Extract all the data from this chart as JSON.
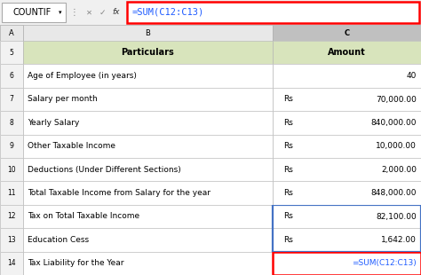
{
  "formula_bar_text": "=SUM(C12:C13)",
  "name_box": "COUNTIF",
  "rows": [
    {
      "row": "5",
      "particulars": "Particulars",
      "rs": "",
      "amount": "Amount",
      "header": true
    },
    {
      "row": "6",
      "particulars": "Age of Employee (in years)",
      "rs": "",
      "amount": "40",
      "header": false
    },
    {
      "row": "7",
      "particulars": "Salary per month",
      "rs": "Rs",
      "amount": "70,000.00",
      "header": false
    },
    {
      "row": "8",
      "particulars": "Yearly Salary",
      "rs": "Rs",
      "amount": "840,000.00",
      "header": false
    },
    {
      "row": "9",
      "particulars": "Other Taxable Income",
      "rs": "Rs",
      "amount": "10,000.00",
      "header": false
    },
    {
      "row": "10",
      "particulars": "Deductions (Under Different Sections)",
      "rs": "Rs",
      "amount": "2,000.00",
      "header": false
    },
    {
      "row": "11",
      "particulars": "Total Taxable Income from Salary for the year",
      "rs": "Rs",
      "amount": "848,000.00",
      "header": false
    },
    {
      "row": "12",
      "particulars": "Tax on Total Taxable Income",
      "rs": "Rs",
      "amount": "82,100.00",
      "header": false
    },
    {
      "row": "13",
      "particulars": "Education Cess",
      "rs": "Rs",
      "amount": "1,642.00",
      "header": false
    },
    {
      "row": "14",
      "particulars": "Tax Liability for the Year",
      "rs": "",
      "amount": "=SUM(C12:C13)",
      "header": false
    }
  ],
  "header_bg": "#d8e4bc",
  "grid_color": "#b0b0b0",
  "formula_bar_border": "#ff0000",
  "formula_text_color": "#1f5cff",
  "blue_border": "#4472c4",
  "red_border_color": "#ff0000",
  "formula_color": "#1f5cff",
  "toolbar_bg": "#f0f0f0",
  "col_header_bg": "#e8e8e8",
  "row_header_bg": "#f2f2f2",
  "white": "#ffffff",
  "font_size": 6.5,
  "header_font_size": 7.0,
  "toolbar_font_size": 7.0,
  "fig_width": 4.74,
  "fig_height": 3.1,
  "dpi": 100
}
